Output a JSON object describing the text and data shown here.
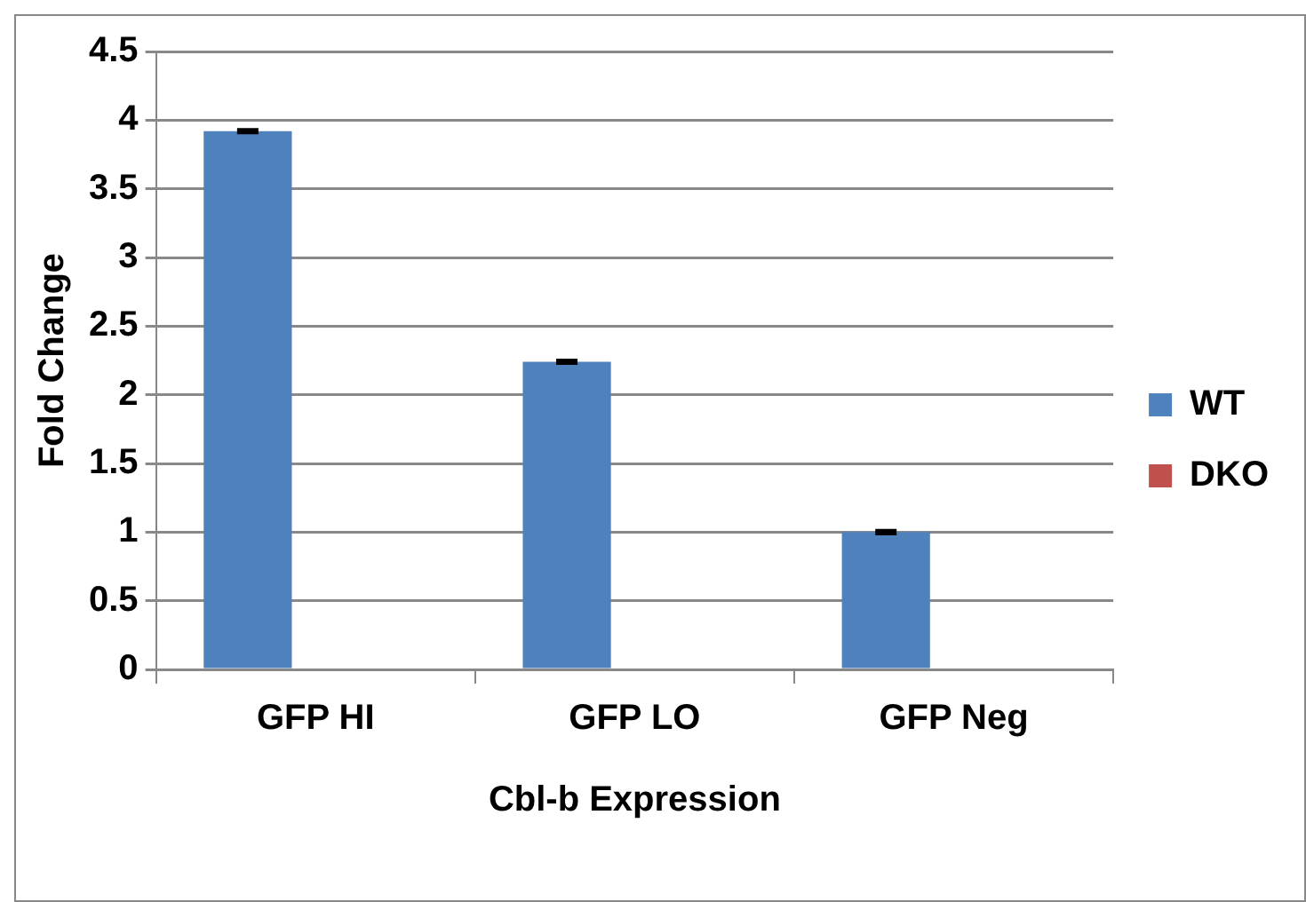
{
  "chart_data": {
    "type": "bar",
    "xlabel": "Cbl-b Expression",
    "ylabel": "Fold Change",
    "categories": [
      "GFP HI",
      "GFP LO",
      "GFP Neg"
    ],
    "series": [
      {
        "name": "WT",
        "color": "#4f81bd",
        "values": [
          3.92,
          2.24,
          1.0
        ],
        "errors": [
          0.01,
          0.01,
          0.01
        ]
      },
      {
        "name": "DKO",
        "color": "#c0504d",
        "values": [
          0,
          0,
          0
        ]
      }
    ],
    "ylim": [
      0,
      4.5
    ],
    "yticks": [
      0,
      0.5,
      1,
      1.5,
      2,
      2.5,
      3,
      3.5,
      4,
      4.5
    ],
    "grid": "y",
    "legend": "right"
  }
}
